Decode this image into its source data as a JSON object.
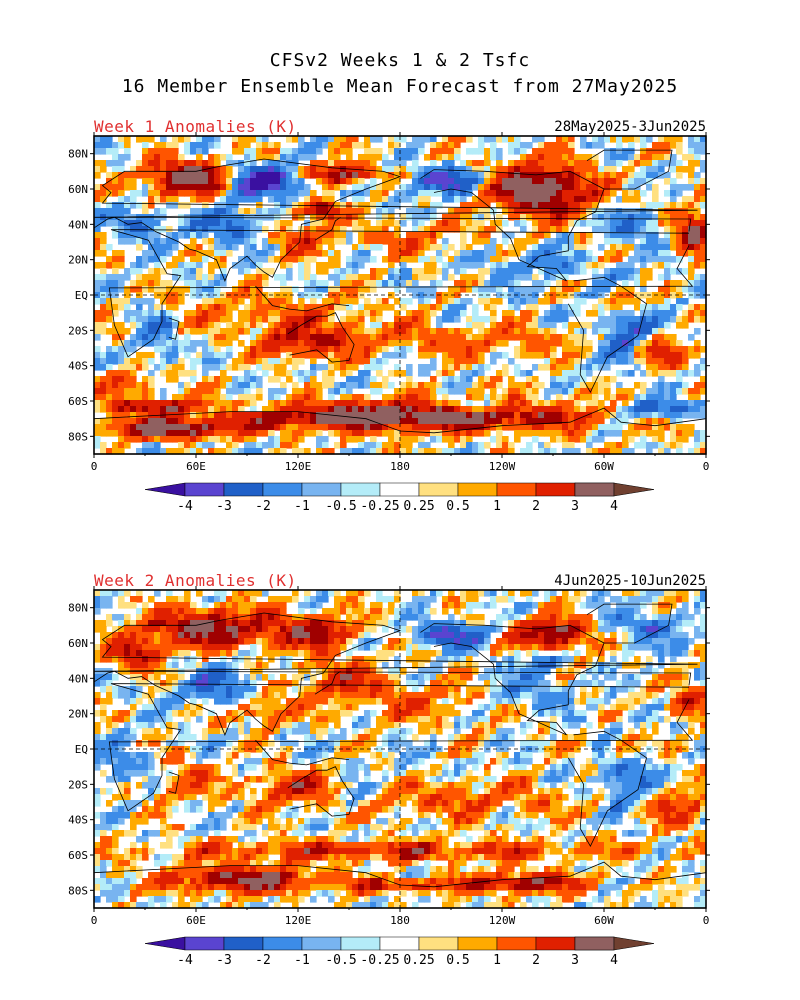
{
  "title_line1": "CFSv2 Weeks 1 & 2 Tsfc",
  "title_line2": "16 Member Ensemble Mean Forecast from 27May2025",
  "panels": [
    {
      "title": "Week 1 Anomalies (K)",
      "dates": "28May2025-3Jun2025"
    },
    {
      "title": "Week 2 Anomalies (K)",
      "dates": "4Jun2025-10Jun2025"
    }
  ],
  "lat_labels": [
    "80N",
    "60N",
    "40N",
    "20N",
    "EQ",
    "20S",
    "40S",
    "60S",
    "80S"
  ],
  "lon_labels": [
    "0",
    "60E",
    "120E",
    "180",
    "120W",
    "60W",
    "0"
  ],
  "colorbar": {
    "labels": [
      "-4",
      "-3",
      "-2",
      "-1",
      "-0.5",
      "-0.25",
      "0.25",
      "0.5",
      "1",
      "2",
      "3",
      "4"
    ],
    "colors": [
      "#3a10a0",
      "#5a44d0",
      "#2060c8",
      "#3c8ce8",
      "#78b4f0",
      "#b4ecf8",
      "#ffffff",
      "#ffe080",
      "#ffaa00",
      "#ff5500",
      "#e02000",
      "#a00000",
      "#906060",
      "#704030"
    ]
  }
}
